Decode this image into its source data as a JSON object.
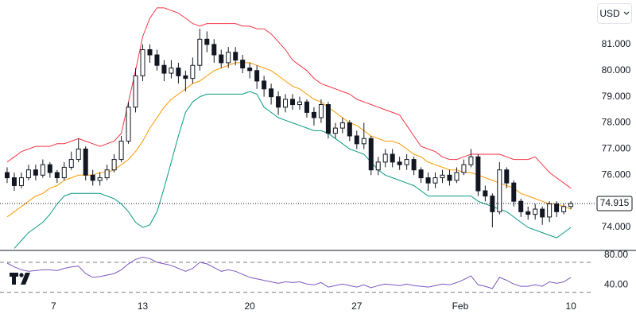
{
  "chart_data": {
    "type": "candlestick",
    "currency": "USD",
    "xlim": [
      -1,
      82
    ],
    "xticks": [
      {
        "value": 6.5,
        "label": "7"
      },
      {
        "value": 19,
        "label": "13"
      },
      {
        "value": 34,
        "label": "20"
      },
      {
        "value": 49,
        "label": "27"
      },
      {
        "value": 63.5,
        "label": "Feb"
      },
      {
        "value": 79,
        "label": "10"
      }
    ],
    "ylim": [
      73.12,
      82.7
    ],
    "yticks": [
      {
        "value": 74,
        "label": "74.000"
      },
      {
        "value": 76,
        "label": "76.000"
      },
      {
        "value": 77,
        "label": "77.000"
      },
      {
        "value": 78,
        "label": "78.000"
      },
      {
        "value": 79,
        "label": "79.000"
      },
      {
        "value": 80,
        "label": "80.000"
      },
      {
        "value": 81,
        "label": "81.000"
      }
    ],
    "candle_color": "#131722",
    "open": [
      76.1,
      75.9,
      75.6,
      75.9,
      76.2,
      76.0,
      76.4,
      76.1,
      75.9,
      76.3,
      76.6,
      77.0,
      76.0,
      75.8,
      75.9,
      76.2,
      76.6,
      77.3,
      78.6,
      79.8,
      80.8,
      80.6,
      80.2,
      79.9,
      80.1,
      79.8,
      79.7,
      80.2,
      81.2,
      81.0,
      80.6,
      80.3,
      80.7,
      80.4,
      80.1,
      80.0,
      79.6,
      79.3,
      79.0,
      78.6,
      78.9,
      78.7,
      78.8,
      78.4,
      78.2,
      78.7,
      77.6,
      77.8,
      78.0,
      77.5,
      77.2,
      77.4,
      76.2,
      76.5,
      76.8,
      76.5,
      76.4,
      76.6,
      76.2,
      75.9,
      75.7,
      75.9,
      76.0,
      75.8,
      76.1,
      76.4,
      76.7,
      75.4,
      75.2,
      74.6,
      76.2,
      75.7,
      75.0,
      74.6,
      74.5,
      74.7,
      74.4,
      74.9,
      74.6,
      74.8
    ],
    "high": [
      76.3,
      76.1,
      76.1,
      76.4,
      76.4,
      76.6,
      76.5,
      76.2,
      76.5,
      76.9,
      77.4,
      77.1,
      76.2,
      76.1,
      76.4,
      76.8,
      77.5,
      78.8,
      80.1,
      81.0,
      81.0,
      80.8,
      80.4,
      80.4,
      80.3,
      80.0,
      80.5,
      81.6,
      81.5,
      81.2,
      80.8,
      80.9,
      80.9,
      80.6,
      80.3,
      80.2,
      79.8,
      79.5,
      79.2,
      79.1,
      79.1,
      79.0,
      78.9,
      78.6,
      78.9,
      78.8,
      78.0,
      78.2,
      78.1,
      77.7,
      78.0,
      77.5,
      76.7,
      77.0,
      77.0,
      76.7,
      76.8,
      76.7,
      76.3,
      76.1,
      76.1,
      76.2,
      76.2,
      76.3,
      76.6,
      77.0,
      76.8,
      75.6,
      75.3,
      76.5,
      76.3,
      75.8,
      75.1,
      74.8,
      74.9,
      74.8,
      75.0,
      75.0,
      74.9,
      75.0
    ],
    "low": [
      75.7,
      75.4,
      75.5,
      75.8,
      75.8,
      75.9,
      75.9,
      75.7,
      75.8,
      76.2,
      76.5,
      75.8,
      75.6,
      75.6,
      75.8,
      76.1,
      76.5,
      77.2,
      78.4,
      79.6,
      80.3,
      80.0,
      79.6,
      79.7,
      79.5,
      79.2,
      79.5,
      80.0,
      80.7,
      80.3,
      80.1,
      80.1,
      80.2,
      79.9,
      79.7,
      79.3,
      79.0,
      78.7,
      78.3,
      78.4,
      78.5,
      78.5,
      78.2,
      77.9,
      78.0,
      77.4,
      77.4,
      77.6,
      77.3,
      77.0,
      77.0,
      76.0,
      76.0,
      76.3,
      76.3,
      76.2,
      76.2,
      76.0,
      75.7,
      75.4,
      75.5,
      75.7,
      75.6,
      75.7,
      76.0,
      76.3,
      75.2,
      75.0,
      74.0,
      74.5,
      75.5,
      74.8,
      74.4,
      74.3,
      74.3,
      74.1,
      74.2,
      74.4,
      74.5,
      74.7
    ],
    "close": [
      75.9,
      75.6,
      75.9,
      76.2,
      76.0,
      76.4,
      76.1,
      75.9,
      76.3,
      76.6,
      77.0,
      76.0,
      75.8,
      75.9,
      76.2,
      76.6,
      77.3,
      78.6,
      79.8,
      80.8,
      80.6,
      80.2,
      79.9,
      80.1,
      79.8,
      79.7,
      80.2,
      81.2,
      81.0,
      80.6,
      80.3,
      80.7,
      80.4,
      80.1,
      80.0,
      79.6,
      79.3,
      79.0,
      78.6,
      78.9,
      78.7,
      78.8,
      78.4,
      78.2,
      78.7,
      77.6,
      77.8,
      78.0,
      77.5,
      77.2,
      77.4,
      76.2,
      76.5,
      76.8,
      76.5,
      76.4,
      76.6,
      76.2,
      75.9,
      75.7,
      75.9,
      76.0,
      75.8,
      76.1,
      76.4,
      76.7,
      75.4,
      75.2,
      74.6,
      76.2,
      75.7,
      75.0,
      74.6,
      74.5,
      74.7,
      74.4,
      74.9,
      74.6,
      74.8,
      74.915
    ],
    "bollinger": {
      "upper": {
        "color": "#f23645",
        "values": [
          76.5,
          76.7,
          76.9,
          77.0,
          77.1,
          77.1,
          77.1,
          77.2,
          77.2,
          77.3,
          77.4,
          77.3,
          77.2,
          77.1,
          77.2,
          77.3,
          77.6,
          78.8,
          80.0,
          81.3,
          82.0,
          82.4,
          82.4,
          82.3,
          82.2,
          82.0,
          81.8,
          81.7,
          81.8,
          81.8,
          81.8,
          81.8,
          81.8,
          81.7,
          81.7,
          81.6,
          81.6,
          81.4,
          81.1,
          80.8,
          80.4,
          80.2,
          80.0,
          79.7,
          79.5,
          79.4,
          79.3,
          79.2,
          79.1,
          78.9,
          78.8,
          78.7,
          78.6,
          78.5,
          78.4,
          78.3,
          77.9,
          77.5,
          77.1,
          77.0,
          76.9,
          76.7,
          76.6,
          76.6,
          76.7,
          76.8,
          76.8,
          76.8,
          76.8,
          76.8,
          76.7,
          76.6,
          76.6,
          76.6,
          76.7,
          76.4,
          76.1,
          75.9,
          75.7,
          75.5
        ]
      },
      "middle": {
        "color": "#ff9800",
        "values": [
          74.4,
          74.6,
          74.8,
          75.0,
          75.2,
          75.3,
          75.5,
          75.6,
          75.8,
          75.9,
          76.0,
          76.0,
          76.0,
          76.1,
          76.1,
          76.2,
          76.4,
          76.6,
          76.9,
          77.3,
          77.8,
          78.2,
          78.6,
          78.9,
          79.1,
          79.3,
          79.5,
          79.6,
          79.8,
          80.0,
          80.1,
          80.2,
          80.3,
          80.3,
          80.3,
          80.2,
          80.1,
          80.0,
          79.8,
          79.6,
          79.4,
          79.3,
          79.1,
          78.9,
          78.8,
          78.6,
          78.4,
          78.2,
          78.0,
          77.9,
          77.7,
          77.5,
          77.4,
          77.3,
          77.3,
          77.2,
          77.0,
          76.8,
          76.7,
          76.5,
          76.4,
          76.3,
          76.2,
          76.2,
          76.1,
          76.1,
          76.0,
          75.9,
          75.8,
          75.7,
          75.6,
          75.5,
          75.3,
          75.2,
          75.1,
          75.0,
          74.9,
          74.9,
          74.8,
          74.7
        ]
      },
      "lower": {
        "color": "#089981",
        "values": [
          null,
          73.2,
          73.5,
          73.8,
          74.0,
          74.2,
          74.5,
          74.9,
          75.2,
          75.3,
          75.3,
          75.3,
          75.3,
          75.3,
          75.2,
          75.1,
          74.9,
          74.6,
          74.2,
          74.0,
          74.1,
          74.6,
          75.5,
          76.5,
          77.5,
          78.4,
          78.8,
          79.0,
          79.1,
          79.1,
          79.1,
          79.1,
          79.1,
          79.1,
          79.2,
          79.1,
          78.6,
          78.4,
          78.2,
          78.1,
          78.0,
          77.9,
          77.8,
          77.7,
          77.7,
          77.6,
          77.4,
          77.2,
          77.0,
          76.9,
          76.8,
          76.5,
          76.2,
          76.0,
          75.9,
          75.8,
          75.7,
          75.6,
          75.4,
          75.2,
          75.2,
          75.2,
          75.2,
          75.2,
          75.2,
          75.2,
          75.0,
          74.9,
          74.8,
          74.7,
          74.6,
          74.4,
          74.2,
          74.0,
          73.9,
          73.8,
          73.7,
          73.6,
          73.8,
          74.0
        ]
      }
    },
    "rsi": {
      "color": "#7e57c2",
      "ylim": [
        19,
        86
      ],
      "yticks": [
        {
          "value": 80,
          "label": "80.00"
        },
        {
          "value": 40,
          "label": "40.00"
        }
      ],
      "levels": [
        70,
        30
      ],
      "values": [
        69,
        64,
        60,
        58,
        59,
        60,
        60,
        59,
        62,
        64,
        65,
        55,
        50,
        51,
        53,
        55,
        60,
        68,
        74,
        77,
        75,
        70,
        68,
        66,
        62,
        58,
        62,
        70,
        68,
        63,
        58,
        60,
        58,
        54,
        50,
        48,
        46,
        44,
        42,
        44,
        43,
        44,
        41,
        40,
        43,
        37,
        39,
        41,
        39,
        37,
        40,
        36,
        39,
        41,
        40,
        39,
        41,
        39,
        38,
        37,
        39,
        41,
        40,
        43,
        47,
        52,
        40,
        38,
        35,
        50,
        46,
        41,
        38,
        38,
        40,
        38,
        44,
        42,
        44,
        50
      ]
    }
  }
}
